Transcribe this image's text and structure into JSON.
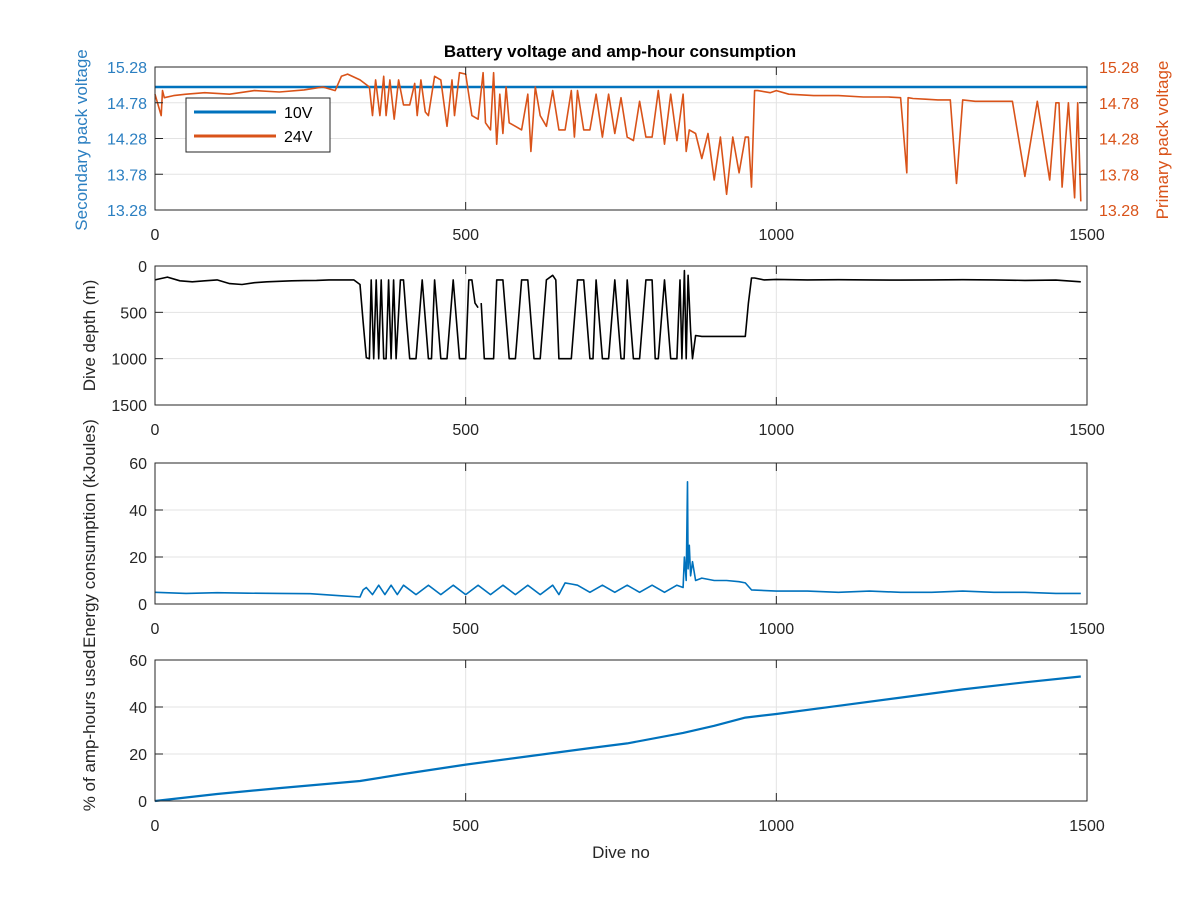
{
  "figure_title": "Battery voltage and amp-hour consumption",
  "colors": {
    "blue": "#0072bd",
    "orange": "#d95319",
    "black": "#000000",
    "grid": "#e3e3e3"
  },
  "chart_data": [
    {
      "type": "line",
      "title": "Battery voltage and amp-hour consumption",
      "xlabel": "",
      "ylabel_left": "Secondary pack voltage",
      "ylabel_right": "Primary pack voltage",
      "xlim": [
        0,
        1500
      ],
      "ylim": [
        13.28,
        15.28
      ],
      "x_ticks": [
        0,
        500,
        1000,
        1500
      ],
      "y_ticks": [
        13.28,
        13.78,
        14.28,
        14.78,
        15.28
      ],
      "grid": true,
      "legend": {
        "placement": "top-left",
        "entries": [
          "10V",
          "24V"
        ]
      },
      "series": [
        {
          "name": "10V",
          "axis": "left",
          "color": "#0072bd",
          "x": [
            0,
            1500
          ],
          "y": [
            15.0,
            15.0
          ]
        },
        {
          "name": "24V",
          "axis": "right",
          "color": "#d95319",
          "x": [
            0,
            10,
            12,
            15,
            30,
            50,
            80,
            120,
            160,
            200,
            240,
            270,
            290,
            300,
            310,
            330,
            345,
            350,
            355,
            362,
            368,
            372,
            378,
            385,
            392,
            400,
            410,
            418,
            422,
            428,
            435,
            440,
            450,
            460,
            470,
            478,
            482,
            490,
            500,
            510,
            520,
            528,
            532,
            540,
            545,
            550,
            555,
            560,
            565,
            570,
            580,
            590,
            600,
            605,
            612,
            620,
            630,
            640,
            650,
            660,
            670,
            675,
            680,
            690,
            700,
            710,
            720,
            730,
            740,
            750,
            760,
            770,
            780,
            790,
            800,
            810,
            820,
            830,
            840,
            850,
            855,
            860,
            870,
            880,
            890,
            900,
            910,
            920,
            930,
            940,
            950,
            955,
            960,
            965,
            970,
            990,
            1000,
            1020,
            1060,
            1100,
            1140,
            1180,
            1200,
            1210,
            1212,
            1220,
            1240,
            1260,
            1280,
            1290,
            1300,
            1320,
            1340,
            1360,
            1380,
            1400,
            1420,
            1440,
            1450,
            1455,
            1460,
            1470,
            1480,
            1485,
            1490
          ],
          "y": [
            14.9,
            14.6,
            14.95,
            14.85,
            14.88,
            14.9,
            14.92,
            14.9,
            14.95,
            14.93,
            14.96,
            15.0,
            14.95,
            15.15,
            15.18,
            15.1,
            15.0,
            14.6,
            15.1,
            14.6,
            15.15,
            14.6,
            15.1,
            14.55,
            15.1,
            14.75,
            14.75,
            15.05,
            14.6,
            15.1,
            14.65,
            14.6,
            15.15,
            15.1,
            14.45,
            15.1,
            14.6,
            15.2,
            15.18,
            14.6,
            14.55,
            15.2,
            14.5,
            14.4,
            15.2,
            14.2,
            14.9,
            14.35,
            15.0,
            14.5,
            14.45,
            14.4,
            14.9,
            14.1,
            15.0,
            14.6,
            14.45,
            14.95,
            14.4,
            14.4,
            14.95,
            14.3,
            14.95,
            14.4,
            14.4,
            14.9,
            14.3,
            14.9,
            14.35,
            14.85,
            14.3,
            14.25,
            14.8,
            14.3,
            14.3,
            14.95,
            14.2,
            14.9,
            14.25,
            14.9,
            14.1,
            14.4,
            14.35,
            14.0,
            14.35,
            13.7,
            14.3,
            13.5,
            14.3,
            13.8,
            14.3,
            14.3,
            13.6,
            14.95,
            14.95,
            14.92,
            14.95,
            14.9,
            14.88,
            14.88,
            14.86,
            14.86,
            14.85,
            13.8,
            14.85,
            14.84,
            14.83,
            14.82,
            14.82,
            13.65,
            14.82,
            14.8,
            14.8,
            14.8,
            14.8,
            13.75,
            14.8,
            13.7,
            14.78,
            14.78,
            13.6,
            14.78,
            13.45,
            14.78,
            13.4
          ]
        }
      ]
    },
    {
      "type": "line",
      "title": "",
      "xlabel": "",
      "ylabel": "Dive depth (m)",
      "xlim": [
        0,
        1500
      ],
      "ylim": [
        1500,
        0
      ],
      "x_ticks": [
        0,
        500,
        1000,
        1500
      ],
      "y_ticks": [
        0,
        500,
        1000,
        1500
      ],
      "grid": true,
      "series": [
        {
          "name": "",
          "color": "#000000",
          "x": [
            0,
            20,
            40,
            60,
            80,
            100,
            120,
            140,
            160,
            180,
            200,
            220,
            240,
            260,
            280,
            300,
            320,
            330,
            335,
            340,
            345,
            348,
            352,
            356,
            360,
            364,
            368,
            372,
            376,
            380,
            384,
            388,
            395,
            400,
            405,
            410,
            420,
            430,
            440,
            445,
            450,
            460,
            470,
            480,
            490,
            500,
            505,
            510,
            515,
            520,
            520,
            525,
            530,
            540,
            545,
            550,
            560,
            570,
            580,
            590,
            600,
            610,
            620,
            630,
            640,
            645,
            650,
            660,
            670,
            680,
            690,
            700,
            705,
            710,
            720,
            730,
            740,
            750,
            755,
            760,
            770,
            780,
            790,
            800,
            805,
            810,
            820,
            830,
            840,
            845,
            848,
            852,
            855,
            858,
            862,
            865,
            870,
            880,
            900,
            920,
            940,
            950,
            955,
            960,
            965,
            980,
            1000,
            1050,
            1100,
            1150,
            1200,
            1250,
            1300,
            1350,
            1400,
            1450,
            1490
          ],
          "y": [
            150,
            120,
            160,
            170,
            160,
            150,
            190,
            200,
            180,
            170,
            165,
            160,
            158,
            155,
            150,
            150,
            150,
            200,
            600,
            990,
            1000,
            150,
            1000,
            150,
            1000,
            150,
            1000,
            1000,
            150,
            1000,
            150,
            1000,
            150,
            150,
            600,
            1000,
            1000,
            150,
            1000,
            1000,
            150,
            1000,
            1000,
            150,
            1000,
            1000,
            150,
            150,
            400,
            450,
            null,
            400,
            1000,
            1000,
            1000,
            150,
            150,
            1000,
            1000,
            150,
            150,
            1000,
            1000,
            150,
            100,
            150,
            1000,
            1000,
            1000,
            150,
            150,
            1000,
            1000,
            150,
            1000,
            1000,
            150,
            1000,
            1000,
            150,
            1000,
            1000,
            150,
            150,
            1000,
            1000,
            150,
            1000,
            1000,
            150,
            1000,
            50,
            1000,
            100,
            700,
            1000,
            750,
            760,
            760,
            760,
            760,
            760,
            400,
            130,
            130,
            150,
            145,
            150,
            148,
            150,
            152,
            150,
            148,
            150,
            155,
            152,
            170
          ]
        }
      ]
    },
    {
      "type": "line",
      "title": "",
      "xlabel": "",
      "ylabel": "Energy consumption (kJoules)",
      "xlim": [
        0,
        1500
      ],
      "ylim": [
        0,
        60
      ],
      "x_ticks": [
        0,
        500,
        1000,
        1500
      ],
      "y_ticks": [
        0,
        20,
        40,
        60
      ],
      "grid": true,
      "series": [
        {
          "name": "",
          "color": "#0072bd",
          "x": [
            0,
            50,
            100,
            150,
            200,
            250,
            300,
            330,
            335,
            340,
            350,
            360,
            370,
            380,
            390,
            400,
            420,
            440,
            460,
            480,
            500,
            520,
            540,
            560,
            580,
            600,
            620,
            640,
            650,
            660,
            670,
            680,
            700,
            720,
            740,
            760,
            780,
            800,
            820,
            840,
            850,
            852,
            855,
            857,
            858,
            860,
            862,
            865,
            870,
            880,
            900,
            920,
            940,
            950,
            960,
            1000,
            1050,
            1100,
            1150,
            1200,
            1250,
            1300,
            1350,
            1400,
            1450,
            1490
          ],
          "y": [
            5,
            4.5,
            4.8,
            4.6,
            4.5,
            4.4,
            3.5,
            3,
            6,
            7,
            4,
            8,
            4,
            8,
            4,
            8,
            4,
            8,
            4,
            8,
            4,
            8,
            4,
            8,
            4,
            8,
            4,
            8,
            4,
            9,
            8.5,
            8,
            5,
            8,
            5,
            8,
            5,
            8,
            5,
            8,
            7,
            20,
            10,
            52,
            15,
            25,
            12,
            18,
            10,
            11,
            10,
            10,
            9.5,
            9,
            6,
            5.5,
            5.5,
            5,
            5.5,
            5,
            5,
            5.5,
            5,
            5,
            4.5,
            4.5
          ]
        }
      ]
    },
    {
      "type": "line",
      "title": "",
      "xlabel": "Dive no",
      "ylabel": "% of amp-hours used",
      "xlim": [
        0,
        1500
      ],
      "ylim": [
        0,
        60
      ],
      "x_ticks": [
        0,
        500,
        1000,
        1500
      ],
      "y_ticks": [
        0,
        20,
        40,
        60
      ],
      "grid": true,
      "series": [
        {
          "name": "",
          "color": "#0072bd",
          "x": [
            0,
            100,
            200,
            330,
            400,
            500,
            600,
            700,
            760,
            850,
            900,
            950,
            1000,
            1100,
            1200,
            1300,
            1400,
            1490
          ],
          "y": [
            0,
            3,
            5.5,
            8.5,
            11.5,
            15.5,
            19,
            22.5,
            24.5,
            29,
            32,
            35.5,
            37,
            40.5,
            44,
            47.5,
            50.5,
            53
          ]
        }
      ]
    }
  ]
}
